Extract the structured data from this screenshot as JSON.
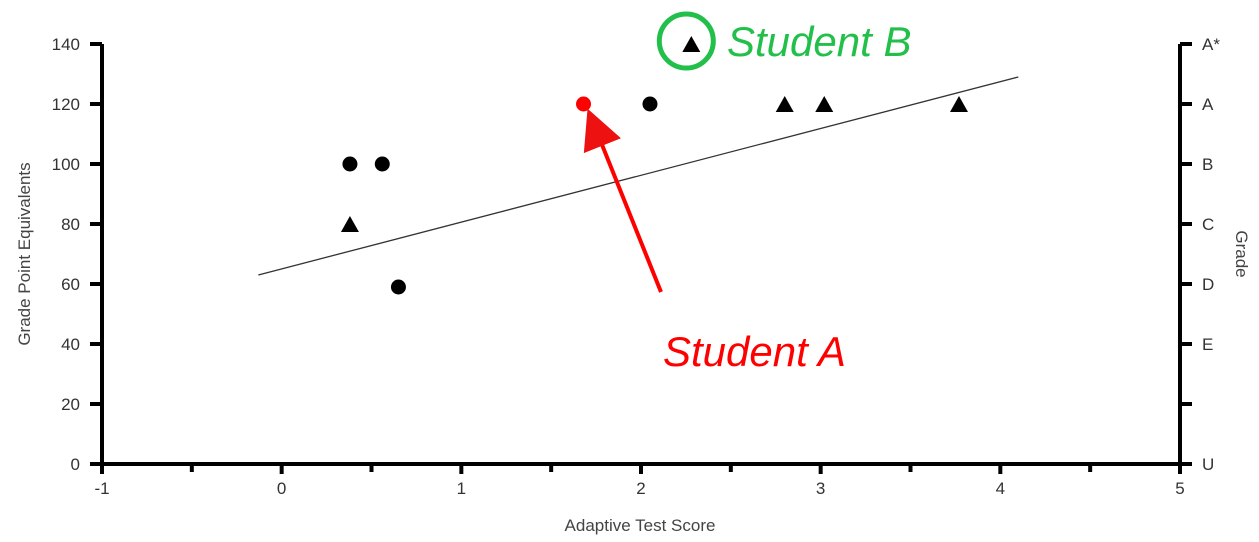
{
  "chart_data": {
    "type": "scatter",
    "xlabel": "Adaptive Test Score",
    "ylabel": "Grade Point Equivalents",
    "y2label": "Grade",
    "xlim": [
      -1,
      5
    ],
    "ylim": [
      0,
      140
    ],
    "x_ticks": [
      "-1",
      "0",
      "1",
      "2",
      "3",
      "4",
      "5"
    ],
    "y_ticks": [
      "0",
      "20",
      "40",
      "60",
      "80",
      "100",
      "120",
      "140"
    ],
    "grade_ticks": [
      {
        "value": 140,
        "label": "A*"
      },
      {
        "value": 120,
        "label": "A"
      },
      {
        "value": 100,
        "label": "B"
      },
      {
        "value": 80,
        "label": "C"
      },
      {
        "value": 60,
        "label": "D"
      },
      {
        "value": 40,
        "label": "E"
      },
      {
        "value": 20,
        "label": ""
      },
      {
        "value": 0,
        "label": "U"
      }
    ],
    "series": [
      {
        "marker": "circle",
        "color": "#000000",
        "points": [
          {
            "x": 0.38,
            "y": 100
          },
          {
            "x": 0.56,
            "y": 100
          },
          {
            "x": 0.65,
            "y": 59
          },
          {
            "x": 2.05,
            "y": 120
          }
        ]
      },
      {
        "marker": "triangle",
        "color": "#000000",
        "points": [
          {
            "x": 0.38,
            "y": 80
          },
          {
            "x": 2.28,
            "y": 140
          },
          {
            "x": 2.8,
            "y": 120
          },
          {
            "x": 3.02,
            "y": 120
          },
          {
            "x": 3.77,
            "y": 120
          }
        ]
      },
      {
        "marker": "circle",
        "color": "#ff0000",
        "points": [
          {
            "x": 1.68,
            "y": 120
          }
        ]
      }
    ],
    "trendline": {
      "x": [
        -0.13,
        4.1
      ],
      "y": [
        63,
        129
      ]
    },
    "annotations": [
      {
        "text": "Student A",
        "color": "#ff0000",
        "target": {
          "x": 1.68,
          "y": 120
        }
      },
      {
        "text": "Student B",
        "color": "#22c04a",
        "target": {
          "x": 2.28,
          "y": 140
        }
      }
    ],
    "grid": false
  }
}
